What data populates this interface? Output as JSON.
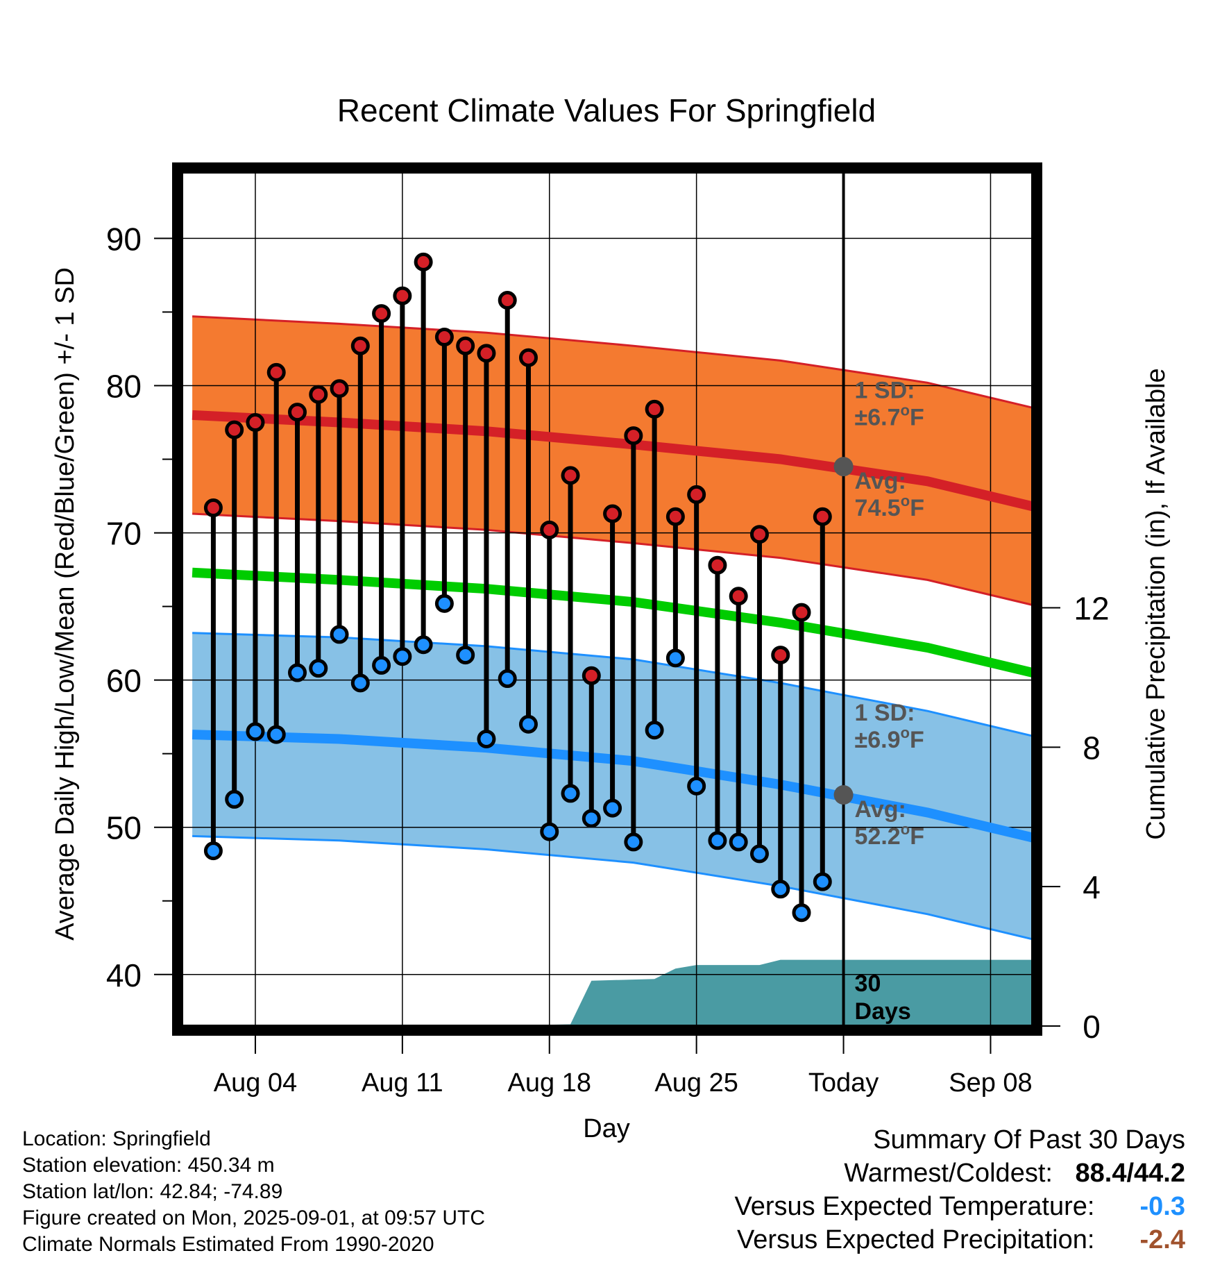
{
  "title": "Recent Climate Values For Springfield",
  "chart_data": {
    "type": "line",
    "title": "Recent Climate Values For Springfield",
    "xlabel": "Day",
    "ylabel": "Average Daily High/Low/Mean (Red/Blue/Green) +/- 1 SD",
    "y2label": "Cumulative Precipitation (in), If Available",
    "x_ticks": [
      "Aug 04",
      "Aug 11",
      "Aug 18",
      "Aug 25",
      "Today",
      "Sep 08"
    ],
    "x_tick_days": [
      "2025-08-04",
      "2025-08-11",
      "2025-08-18",
      "2025-08-25",
      "2025-09-01",
      "2025-09-08"
    ],
    "x_range": [
      "2025-08-01",
      "2025-09-10"
    ],
    "ylim": [
      36.5,
      94.5
    ],
    "y_ticks": [
      40,
      50,
      60,
      70,
      80,
      90
    ],
    "y2lim": [
      0,
      24.5
    ],
    "y2_ticks": [
      0,
      4,
      8,
      12
    ],
    "grid": true,
    "today": "2025-09-01",
    "observed": {
      "dates": [
        "2025-08-02",
        "2025-08-03",
        "2025-08-04",
        "2025-08-05",
        "2025-08-06",
        "2025-08-07",
        "2025-08-08",
        "2025-08-09",
        "2025-08-10",
        "2025-08-11",
        "2025-08-12",
        "2025-08-13",
        "2025-08-14",
        "2025-08-15",
        "2025-08-16",
        "2025-08-17",
        "2025-08-18",
        "2025-08-19",
        "2025-08-20",
        "2025-08-21",
        "2025-08-22",
        "2025-08-23",
        "2025-08-24",
        "2025-08-25",
        "2025-08-26",
        "2025-08-27",
        "2025-08-28",
        "2025-08-29",
        "2025-08-30",
        "2025-08-31"
      ],
      "high": [
        71.7,
        77.0,
        77.5,
        80.9,
        78.2,
        79.4,
        79.8,
        82.7,
        84.9,
        86.1,
        88.4,
        83.3,
        82.7,
        82.2,
        85.8,
        81.9,
        70.2,
        73.9,
        60.3,
        71.3,
        76.6,
        78.4,
        71.1,
        72.6,
        67.8,
        65.7,
        69.9,
        61.7,
        64.6,
        71.1
      ],
      "low": [
        48.4,
        51.9,
        56.5,
        56.3,
        60.5,
        60.8,
        63.1,
        59.8,
        61.0,
        61.6,
        62.4,
        65.2,
        61.7,
        56.0,
        60.1,
        57.0,
        49.7,
        52.3,
        50.6,
        51.3,
        49.0,
        56.6,
        61.5,
        52.8,
        49.1,
        49.0,
        48.2,
        45.8,
        44.2,
        46.3
      ]
    },
    "normals": {
      "dates": [
        "2025-08-01",
        "2025-08-08",
        "2025-08-15",
        "2025-08-22",
        "2025-08-29",
        "2025-09-05",
        "2025-09-10"
      ],
      "high_avg": [
        78.0,
        77.5,
        76.9,
        76.0,
        75.0,
        73.5,
        71.8
      ],
      "low_avg": [
        56.3,
        56.0,
        55.4,
        54.5,
        52.9,
        51.0,
        49.3
      ],
      "mean_avg": [
        67.3,
        66.8,
        66.2,
        65.3,
        63.9,
        62.2,
        60.5
      ],
      "high_sd": 6.7,
      "low_sd": 6.9
    },
    "precip_cumulative": {
      "dates": [
        "2025-08-01",
        "2025-08-15",
        "2025-08-19",
        "2025-08-20",
        "2025-08-23",
        "2025-08-24",
        "2025-08-25",
        "2025-08-28",
        "2025-08-29",
        "2025-09-10"
      ],
      "values": [
        0.0,
        0.0,
        0.05,
        1.3,
        1.35,
        1.65,
        1.75,
        1.75,
        1.9,
        1.9
      ]
    },
    "annotations": {
      "high_sd_label": "1 SD:",
      "high_sd_value": "±6.7",
      "high_avg_label": "Avg:",
      "high_avg_value": "74.5",
      "low_sd_label": "1 SD:",
      "low_sd_value": "±6.9",
      "low_avg_label": "Avg:",
      "low_avg_value": "52.2",
      "degree_unit": "F",
      "period_label_1": "30",
      "period_label_2": "Days"
    },
    "colors": {
      "high": "#d42027",
      "high_band": "#f47a30",
      "low": "#1e90ff",
      "low_band": "#87c1e6",
      "mean": "#00cc00",
      "precip": "#4a9ba3",
      "label_gray": "#555555"
    }
  },
  "info": {
    "location": "Location: Springfield",
    "elevation": "Station elevation: 450.34 m",
    "latlon": "Station lat/lon: 42.84; -74.89",
    "created": "Figure created on Mon, 2025-09-01, at 09:57 UTC",
    "normals": "Climate Normals Estimated From 1990-2020"
  },
  "summary": {
    "title": "Summary Of Past 30 Days",
    "warm_cold_label": "Warmest/Coldest:",
    "warm_cold_value": "88.4/44.2",
    "temp_label": "Versus Expected Temperature:",
    "temp_value": "-0.3",
    "temp_color": "#1e90ff",
    "precip_label": "Versus Expected Precipitation:",
    "precip_value": "-2.4",
    "precip_color": "#a0522d"
  }
}
